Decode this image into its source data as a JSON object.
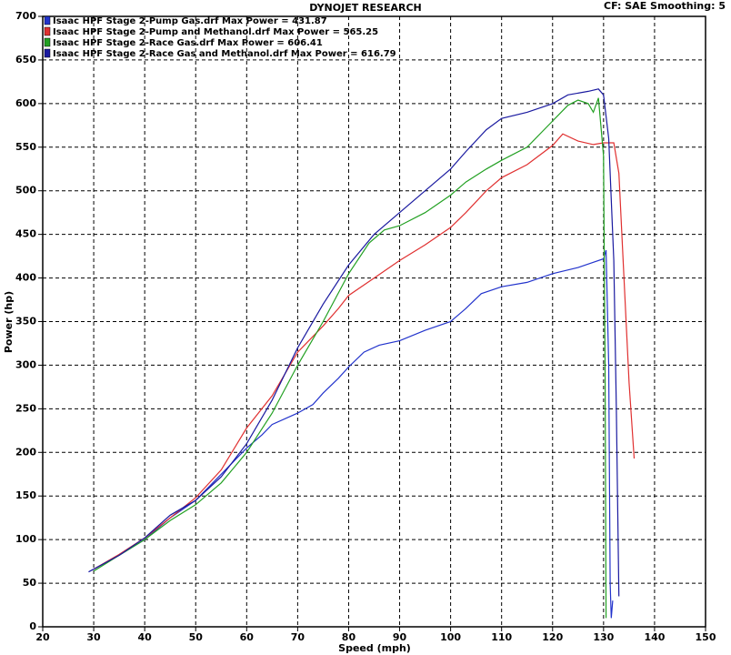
{
  "chart_data": {
    "type": "line",
    "title": "DYNOJET RESEARCH",
    "subtitle": "CF: SAE  Smoothing: 5",
    "x_label": "Speed (mph)",
    "y_label": "Power (hp)",
    "xlim": [
      20,
      150
    ],
    "ylim": [
      0,
      700
    ],
    "xticks": [
      20,
      30,
      40,
      50,
      60,
      70,
      80,
      90,
      100,
      110,
      120,
      130,
      140,
      150
    ],
    "yticks": [
      0,
      50,
      100,
      150,
      200,
      250,
      300,
      350,
      400,
      450,
      500,
      550,
      600,
      650,
      700
    ],
    "grid": true,
    "series": [
      {
        "name": "Isaac HPF Stage 2-Pump Gas.drf Max Power = 431.87",
        "color": "#2233cc",
        "x": [
          29,
          35,
          40,
          45,
          50,
          55,
          60,
          63,
          65,
          70,
          73,
          75,
          78,
          80,
          83,
          86,
          90,
          95,
          100,
          103,
          106,
          110,
          115,
          120,
          125,
          128,
          130,
          130.5,
          131,
          131.3,
          131.5,
          131.8
        ],
        "values": [
          63,
          82,
          100,
          125,
          145,
          175,
          205,
          220,
          232,
          245,
          255,
          268,
          285,
          298,
          315,
          323,
          328,
          340,
          350,
          365,
          382,
          390,
          395,
          405,
          412,
          418,
          422,
          431.87,
          300,
          50,
          10,
          30
        ]
      },
      {
        "name": "Isaac HPF Stage 2-Pump and Methanol.drf Max Power = 565.25",
        "color": "#e03030",
        "x": [
          30,
          35,
          40,
          45,
          50,
          55,
          60,
          65,
          70,
          75,
          78,
          80,
          85,
          90,
          95,
          100,
          103,
          107,
          110,
          115,
          120,
          122,
          125,
          128,
          130,
          132,
          133,
          134,
          135,
          136
        ],
        "values": [
          66,
          83,
          102,
          125,
          148,
          180,
          228,
          265,
          315,
          345,
          365,
          380,
          400,
          420,
          438,
          458,
          475,
          500,
          515,
          530,
          552,
          565.25,
          557,
          553,
          555,
          555,
          520,
          400,
          280,
          193
        ]
      },
      {
        "name": "Isaac HPF Stage 2-Race Gas.drf Max Power = 606.41",
        "color": "#22a022",
        "x": [
          30,
          35,
          40,
          45,
          50,
          55,
          60,
          65,
          70,
          75,
          80,
          84,
          87,
          90,
          95,
          100,
          103,
          107,
          110,
          115,
          120,
          123,
          125,
          127,
          128,
          129,
          130,
          130.3,
          130.5
        ],
        "values": [
          64,
          82,
          100,
          122,
          140,
          165,
          200,
          245,
          300,
          350,
          405,
          440,
          455,
          460,
          475,
          495,
          510,
          525,
          535,
          550,
          580,
          598,
          604,
          600,
          590,
          606.41,
          540,
          300,
          10
        ]
      },
      {
        "name": "Isaac HPF Stage 2-Race Gas and Methanol.drf Max Power = 616.79",
        "color": "#1a1aa0",
        "x": [
          29,
          35,
          40,
          45,
          50,
          55,
          60,
          65,
          70,
          75,
          80,
          85,
          90,
          95,
          100,
          103,
          107,
          110,
          115,
          120,
          123,
          127,
          129,
          130,
          131,
          132,
          132.5,
          133
        ],
        "values": [
          63,
          82,
          102,
          128,
          145,
          172,
          210,
          260,
          320,
          370,
          415,
          450,
          475,
          500,
          525,
          545,
          570,
          583,
          590,
          600,
          610,
          614,
          616.79,
          610,
          560,
          420,
          250,
          35
        ]
      }
    ]
  }
}
